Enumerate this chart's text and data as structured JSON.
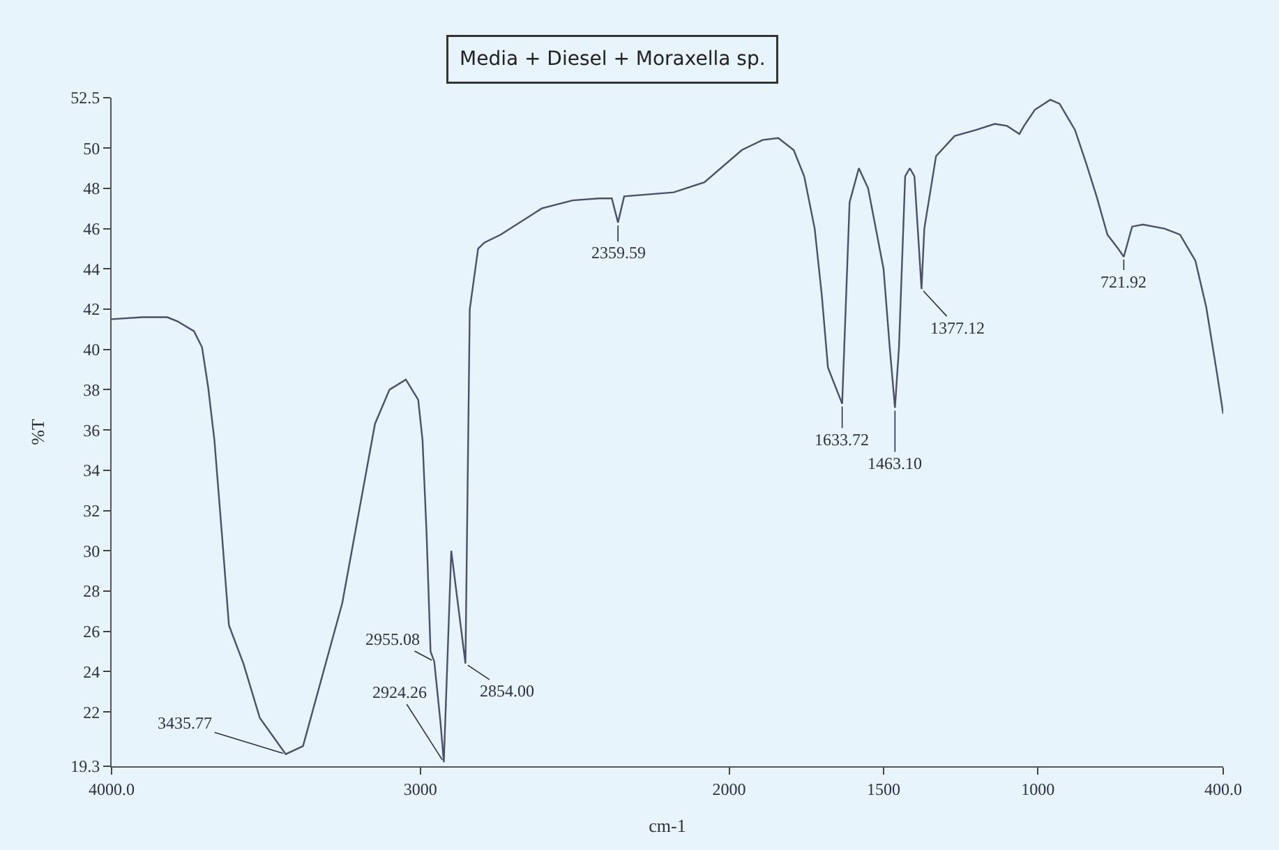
{
  "chart_data": {
    "type": "line",
    "title": "Media + Diesel + Moraxella sp.",
    "xlabel": "cm-1",
    "ylabel": "%T",
    "x": [
      4000,
      3900,
      3820,
      3787,
      3733,
      3707,
      3687,
      3667,
      3640,
      3620,
      3573,
      3520,
      3436,
      3380,
      3253,
      3147,
      3100,
      3047,
      3007,
      2993,
      2980,
      2967,
      2955,
      2935,
      2924,
      2900,
      2854,
      2840,
      2813,
      2793,
      2740,
      2607,
      2507,
      2420,
      2380,
      2360,
      2340,
      2180,
      2080,
      1959,
      1892,
      1841,
      1791,
      1757,
      1723,
      1700,
      1680,
      1634,
      1610,
      1580,
      1550,
      1500,
      1480,
      1463,
      1450,
      1430,
      1415,
      1400,
      1388,
      1377,
      1368,
      1330,
      1270,
      1200,
      1140,
      1100,
      1080,
      1060,
      1045,
      1010,
      960,
      930,
      880,
      845,
      810,
      775,
      740,
      722,
      695,
      660,
      590,
      540,
      490,
      455,
      420,
      400
    ],
    "series": [
      {
        "color": "#4a4f6a",
        "values": [
          41.5,
          41.6,
          41.6,
          41.4,
          40.9,
          40.1,
          38.1,
          35.5,
          30.3,
          26.3,
          24.4,
          21.7,
          19.9,
          20.3,
          27.4,
          36.3,
          38.0,
          38.5,
          37.5,
          35.5,
          30.9,
          25.0,
          24.5,
          21.5,
          19.5,
          30.0,
          24.4,
          42.0,
          45.0,
          45.3,
          45.7,
          47.0,
          47.4,
          47.5,
          47.5,
          46.3,
          47.6,
          47.8,
          48.3,
          49.9,
          50.4,
          50.5,
          49.9,
          48.6,
          46.0,
          42.7,
          39.1,
          37.3,
          47.3,
          49.0,
          48.0,
          44.0,
          40.1,
          37.1,
          40.1,
          48.6,
          49.0,
          48.6,
          45.7,
          43.0,
          46.0,
          49.6,
          50.6,
          50.9,
          51.2,
          51.1,
          50.9,
          50.7,
          51.1,
          51.9,
          52.4,
          52.2,
          50.9,
          49.3,
          47.6,
          45.7,
          45.0,
          44.6,
          46.1,
          46.2,
          46.0,
          45.7,
          44.4,
          42.1,
          38.8,
          36.8
        ]
      }
    ],
    "xlim": [
      4000,
      400
    ],
    "ylim": [
      19.3,
      52.5
    ],
    "xticks": [
      {
        "value": 4000,
        "label": "4000.0"
      },
      3000,
      2000,
      1500,
      1000,
      {
        "value": 400,
        "label": "400.0"
      }
    ],
    "yticks": [
      19.3,
      22,
      24,
      26,
      28,
      30,
      32,
      34,
      36,
      38,
      40,
      42,
      44,
      46,
      48,
      50,
      52.5
    ],
    "grid": false,
    "marker": "none",
    "line_style": "solid",
    "annotations": [
      {
        "text": "3435.77",
        "x": 3436,
        "y": 19.9
      },
      {
        "text": "2955.08",
        "x": 2955,
        "y": 24.5
      },
      {
        "text": "2924.26",
        "x": 2924,
        "y": 19.5
      },
      {
        "text": "2854.00",
        "x": 2854,
        "y": 24.4
      },
      {
        "text": "2359.59",
        "x": 2360,
        "y": 46.3
      },
      {
        "text": "1633.72",
        "x": 1634,
        "y": 37.3
      },
      {
        "text": "1463.10",
        "x": 1463,
        "y": 37.1
      },
      {
        "text": "1377.12",
        "x": 1377,
        "y": 43.0
      },
      {
        "text": "721.92",
        "x": 722,
        "y": 44.6
      }
    ]
  }
}
